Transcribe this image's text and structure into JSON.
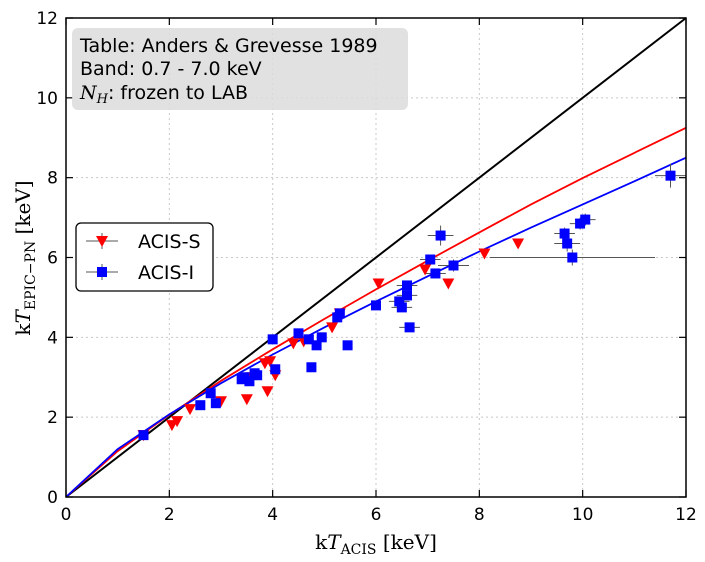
{
  "chart_data": {
    "type": "scatter",
    "xlabel": "kT_ACIS [keV]",
    "ylabel": "kT_EPIC-PN [keV]",
    "xlabel_parts": {
      "pre": "k",
      "sym": "T",
      "sub": "ACIS",
      "post": " [keV]"
    },
    "ylabel_parts": {
      "pre": "k",
      "sym": "T",
      "sub": "EPIC−PN",
      "post": " [keV]"
    },
    "xlim": [
      0,
      12
    ],
    "ylim": [
      0,
      12
    ],
    "xticks": [
      0,
      2,
      4,
      6,
      8,
      10,
      12
    ],
    "yticks": [
      0,
      2,
      4,
      6,
      8,
      10,
      12
    ],
    "grid": true,
    "legend_position": "center-left",
    "annotation": {
      "lines": [
        "Table: Anders & Grevesse 1989",
        "Band: 0.7 - 7.0 keV"
      ],
      "nh_symbol": "N",
      "nh_sub": "H",
      "nh_text": ": frozen to LAB"
    },
    "colors": {
      "acis_s": "#ff0000",
      "acis_i": "#0000ff",
      "identity": "#000000",
      "grid": "#c8c8c8",
      "errorbar": "#555555"
    },
    "series": [
      {
        "name": "ACIS-S",
        "marker": "triangle-down",
        "color": "#ff0000",
        "points": [
          {
            "x": 1.5,
            "y": 1.55
          },
          {
            "x": 2.05,
            "y": 1.8
          },
          {
            "x": 2.15,
            "y": 1.9
          },
          {
            "x": 2.4,
            "y": 2.2
          },
          {
            "x": 3.0,
            "y": 2.4
          },
          {
            "x": 3.5,
            "y": 2.45
          },
          {
            "x": 3.6,
            "y": 3.0
          },
          {
            "x": 3.85,
            "y": 3.35
          },
          {
            "x": 3.9,
            "y": 2.65
          },
          {
            "x": 3.95,
            "y": 3.4
          },
          {
            "x": 4.05,
            "y": 3.05
          },
          {
            "x": 4.4,
            "y": 3.85
          },
          {
            "x": 4.6,
            "y": 3.9
          },
          {
            "x": 5.15,
            "y": 4.25
          },
          {
            "x": 5.3,
            "y": 4.6
          },
          {
            "x": 6.05,
            "y": 5.35
          },
          {
            "x": 6.95,
            "y": 5.7
          },
          {
            "x": 7.4,
            "y": 5.35
          },
          {
            "x": 8.1,
            "y": 6.1
          },
          {
            "x": 8.75,
            "y": 6.35
          }
        ],
        "fit": [
          {
            "x": 0,
            "y": 0
          },
          {
            "x": 1,
            "y": 1.15
          },
          {
            "x": 2,
            "y": 2.06
          },
          {
            "x": 3,
            "y": 2.91
          },
          {
            "x": 4,
            "y": 3.7
          },
          {
            "x": 5,
            "y": 4.46
          },
          {
            "x": 6,
            "y": 5.2
          },
          {
            "x": 7,
            "y": 5.92
          },
          {
            "x": 8,
            "y": 6.63
          },
          {
            "x": 9,
            "y": 7.33
          },
          {
            "x": 10,
            "y": 7.99
          },
          {
            "x": 11,
            "y": 8.62
          },
          {
            "x": 12,
            "y": 9.25
          }
        ]
      },
      {
        "name": "ACIS-I",
        "marker": "square",
        "color": "#0000ff",
        "points": [
          {
            "x": 1.5,
            "y": 1.55
          },
          {
            "x": 2.6,
            "y": 2.3
          },
          {
            "x": 2.8,
            "y": 2.6
          },
          {
            "x": 2.9,
            "y": 2.35
          },
          {
            "x": 3.4,
            "y": 2.95
          },
          {
            "x": 3.45,
            "y": 3.0
          },
          {
            "x": 3.55,
            "y": 2.9
          },
          {
            "x": 3.65,
            "y": 3.1
          },
          {
            "x": 3.7,
            "y": 3.05
          },
          {
            "x": 4.0,
            "y": 3.95
          },
          {
            "x": 4.05,
            "y": 3.2
          },
          {
            "x": 4.5,
            "y": 4.1
          },
          {
            "x": 4.7,
            "y": 3.95
          },
          {
            "x": 4.75,
            "y": 3.25
          },
          {
            "x": 4.85,
            "y": 3.8
          },
          {
            "x": 4.95,
            "y": 4.0
          },
          {
            "x": 5.25,
            "y": 4.5
          },
          {
            "x": 5.3,
            "y": 4.6
          },
          {
            "x": 5.45,
            "y": 3.8
          },
          {
            "x": 6.0,
            "y": 4.8
          },
          {
            "x": 6.45,
            "y": 4.9
          },
          {
            "x": 6.5,
            "y": 4.75
          },
          {
            "x": 6.6,
            "y": 5.3
          },
          {
            "x": 6.6,
            "y": 5.05
          },
          {
            "x": 6.65,
            "y": 4.25
          },
          {
            "x": 7.05,
            "y": 5.95
          },
          {
            "x": 7.15,
            "y": 5.6
          },
          {
            "x": 7.25,
            "y": 6.55
          },
          {
            "x": 7.5,
            "y": 5.8
          },
          {
            "x": 9.65,
            "y": 6.6
          },
          {
            "x": 9.7,
            "y": 6.35
          },
          {
            "x": 9.8,
            "y": 6.0
          },
          {
            "x": 9.95,
            "y": 6.85
          },
          {
            "x": 10.05,
            "y": 6.95
          },
          {
            "x": 11.7,
            "y": 8.05
          }
        ],
        "xerr": [
          0,
          0,
          0,
          0,
          0,
          0,
          0,
          0,
          0,
          0,
          0,
          0,
          0,
          0,
          0,
          0,
          0,
          0,
          0,
          0,
          0.2,
          0.2,
          0.2,
          0.2,
          0.2,
          0.2,
          0.2,
          0.25,
          0.3,
          0.2,
          0.25,
          1.6,
          0.2,
          0.2,
          0.3
        ],
        "yerr": [
          0,
          0,
          0,
          0,
          0,
          0,
          0,
          0,
          0,
          0,
          0,
          0,
          0,
          0,
          0,
          0,
          0,
          0,
          0,
          0,
          0.1,
          0.1,
          0.1,
          0.1,
          0.1,
          0.1,
          0.1,
          0.25,
          0.15,
          0.15,
          0.2,
          0.2,
          0.15,
          0.15,
          0.3
        ],
        "fit": [
          {
            "x": 0,
            "y": 0
          },
          {
            "x": 1,
            "y": 1.2
          },
          {
            "x": 2,
            "y": 2.07
          },
          {
            "x": 3,
            "y": 2.85
          },
          {
            "x": 4,
            "y": 3.57
          },
          {
            "x": 5,
            "y": 4.25
          },
          {
            "x": 6,
            "y": 4.9
          },
          {
            "x": 7,
            "y": 5.53
          },
          {
            "x": 8,
            "y": 6.15
          },
          {
            "x": 9,
            "y": 6.75
          },
          {
            "x": 10,
            "y": 7.33
          },
          {
            "x": 11,
            "y": 7.91
          },
          {
            "x": 12,
            "y": 8.5
          }
        ]
      }
    ]
  }
}
